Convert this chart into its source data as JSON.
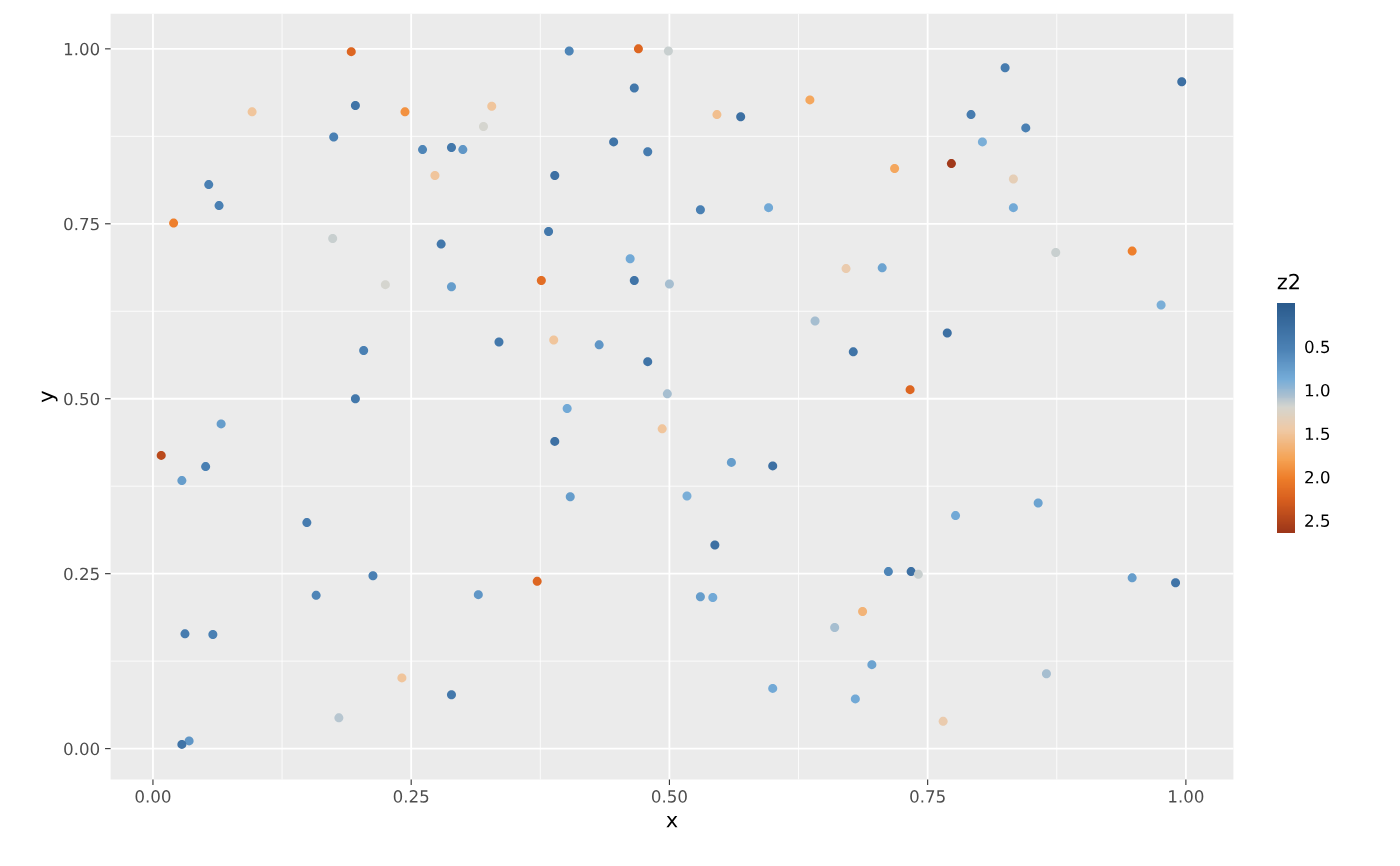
{
  "chart_data": {
    "type": "scatter",
    "xlabel": "x",
    "ylabel": "y",
    "clabel": "z2",
    "xlim": [
      -0.041,
      1.046
    ],
    "ylim": [
      -0.044,
      1.05
    ],
    "xticks": [
      {
        "value": 0,
        "label": "0.00"
      },
      {
        "value": 0.25,
        "label": "0.25"
      },
      {
        "value": 0.5,
        "label": "0.50"
      },
      {
        "value": 0.75,
        "label": "0.75"
      },
      {
        "value": 1,
        "label": "1.00"
      }
    ],
    "yticks": [
      {
        "value": 0,
        "label": "0.00"
      },
      {
        "value": 0.25,
        "label": "0.25"
      },
      {
        "value": 0.5,
        "label": "0.50"
      },
      {
        "value": 0.75,
        "label": "0.75"
      },
      {
        "value": 1,
        "label": "1.00"
      }
    ],
    "clim": [
      2.65,
      0
    ],
    "cticks": [
      0.5,
      {
        "value": 1,
        "label": "1.0"
      },
      1.5,
      {
        "value": 2,
        "label": "2.0"
      },
      2.5
    ],
    "grid": true,
    "marker": "circle",
    "x": [
      0.192,
      0.47,
      0.499,
      0.403,
      0.825,
      0.996,
      0.096,
      0.196,
      0.244,
      0.175,
      0.466,
      0.328,
      0.546,
      0.569,
      0.636,
      0.32,
      0.261,
      0.289,
      0.3,
      0.446,
      0.479,
      0.845,
      0.792,
      0.803,
      0.718,
      0.773,
      0.833,
      0.833,
      0.054,
      0.064,
      0.02,
      0.389,
      0.273,
      0.174,
      0.279,
      0.383,
      0.53,
      0.596,
      0.225,
      0.376,
      0.462,
      0.466,
      0.5,
      0.289,
      0.671,
      0.706,
      0.874,
      0.948,
      0.976,
      0.769,
      0.641,
      0.678,
      0.204,
      0.335,
      0.432,
      0.388,
      0.479,
      0.733,
      0.498,
      0.196,
      0.401,
      0.066,
      0.008,
      0.389,
      0.493,
      0.051,
      0.028,
      0.56,
      0.6,
      0.404,
      0.517,
      0.149,
      0.777,
      0.857,
      0.544,
      0.213,
      0.712,
      0.734,
      0.741,
      0.372,
      0.158,
      0.315,
      0.53,
      0.542,
      0.948,
      0.99,
      0.031,
      0.058,
      0.66,
      0.687,
      0.696,
      0.865,
      0.241,
      0.289,
      0.6,
      0.68,
      0.18,
      0.765,
      0.035,
      0.028
    ],
    "values": [
      0.996,
      1.0,
      0.997,
      0.997,
      0.973,
      0.953,
      0.91,
      0.919,
      0.91,
      0.874,
      0.944,
      0.918,
      0.906,
      0.903,
      0.927,
      0.889,
      0.856,
      0.859,
      0.856,
      0.867,
      0.853,
      0.887,
      0.906,
      0.867,
      0.829,
      0.836,
      0.814,
      0.773,
      0.806,
      0.776,
      0.751,
      0.819,
      0.819,
      0.729,
      0.721,
      0.739,
      0.77,
      0.773,
      0.663,
      0.669,
      0.7,
      0.669,
      0.664,
      0.66,
      0.686,
      0.687,
      0.709,
      0.711,
      0.634,
      0.594,
      0.611,
      0.567,
      0.569,
      0.581,
      0.577,
      0.584,
      0.553,
      0.513,
      0.507,
      0.5,
      0.486,
      0.464,
      0.419,
      0.439,
      0.457,
      0.403,
      0.383,
      0.409,
      0.404,
      0.36,
      0.361,
      0.323,
      0.333,
      0.351,
      0.291,
      0.247,
      0.253,
      0.253,
      0.249,
      0.239,
      0.219,
      0.22,
      0.217,
      0.216,
      0.244,
      0.237,
      0.164,
      0.163,
      0.173,
      0.196,
      0.12,
      0.107,
      0.101,
      0.077,
      0.086,
      0.071,
      0.044,
      0.039,
      0.011,
      0.006
    ],
    "cvalues": [
      2.2,
      2.2,
      1.15,
      0.55,
      0.45,
      0.3,
      1.5,
      0.35,
      1.9,
      0.5,
      0.4,
      1.5,
      1.55,
      0.3,
      1.75,
      1.2,
      0.55,
      0.4,
      0.7,
      0.35,
      0.45,
      0.5,
      0.45,
      0.9,
      1.75,
      2.6,
      1.35,
      0.85,
      0.5,
      0.5,
      2.0,
      0.3,
      1.5,
      1.15,
      0.4,
      0.4,
      0.5,
      0.85,
      1.2,
      2.15,
      0.85,
      0.35,
      1.05,
      0.75,
      1.4,
      0.8,
      1.15,
      2.0,
      0.9,
      0.3,
      1.05,
      0.35,
      0.5,
      0.4,
      0.7,
      1.5,
      0.35,
      2.2,
      1.05,
      0.4,
      0.85,
      0.75,
      2.45,
      0.3,
      1.5,
      0.5,
      0.75,
      0.75,
      0.3,
      0.75,
      0.9,
      0.45,
      0.85,
      0.8,
      0.3,
      0.5,
      0.55,
      0.3,
      1.15,
      2.2,
      0.55,
      0.7,
      0.75,
      0.85,
      0.75,
      0.35,
      0.45,
      0.5,
      1.05,
      1.65,
      0.8,
      1.05,
      1.5,
      0.4,
      0.85,
      0.85,
      1.1,
      1.4,
      0.7,
      0.35
    ]
  }
}
